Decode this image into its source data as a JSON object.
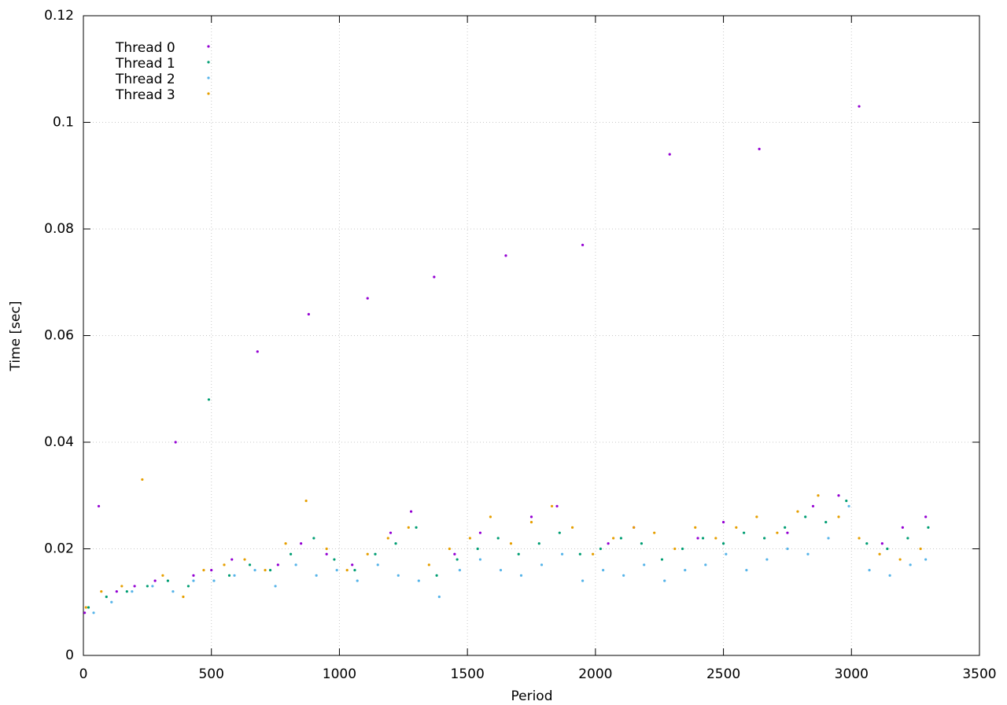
{
  "chart_data": {
    "type": "scatter",
    "x_label": "Period",
    "y_label": "Time [sec]",
    "xlim": [
      0,
      3500
    ],
    "xticks": [
      0,
      500,
      1000,
      1500,
      2000,
      2500,
      3000,
      3500
    ],
    "ylim": [
      0,
      0.12
    ],
    "yticks": [
      0,
      0.02,
      0.04,
      0.06,
      0.08,
      0.1,
      0.12
    ],
    "grid": true,
    "legend": "top-left",
    "series": [
      {
        "name": "Thread 0",
        "color": "#9400d3",
        "x": [
          5,
          60,
          130,
          200,
          280,
          360,
          430,
          500,
          580,
          680,
          760,
          850,
          880,
          950,
          1050,
          1110,
          1200,
          1280,
          1370,
          1450,
          1550,
          1650,
          1750,
          1850,
          1950,
          2050,
          2150,
          2290,
          2400,
          2500,
          2640,
          2750,
          2850,
          2950,
          3030,
          3120,
          3200,
          3290
        ],
        "values": [
          0.008,
          0.028,
          0.012,
          0.013,
          0.014,
          0.04,
          0.015,
          0.016,
          0.018,
          0.057,
          0.017,
          0.021,
          0.064,
          0.019,
          0.017,
          0.067,
          0.023,
          0.027,
          0.071,
          0.019,
          0.023,
          0.075,
          0.026,
          0.028,
          0.077,
          0.021,
          0.024,
          0.094,
          0.022,
          0.025,
          0.095,
          0.023,
          0.028,
          0.03,
          0.103,
          0.021,
          0.024,
          0.026
        ]
      },
      {
        "name": "Thread 1",
        "color": "#009e73",
        "x": [
          20,
          90,
          170,
          250,
          330,
          410,
          490,
          570,
          650,
          730,
          810,
          900,
          980,
          1060,
          1140,
          1220,
          1300,
          1380,
          1460,
          1540,
          1620,
          1700,
          1780,
          1860,
          1940,
          2020,
          2100,
          2180,
          2260,
          2340,
          2420,
          2500,
          2580,
          2660,
          2740,
          2820,
          2900,
          2980,
          3060,
          3140,
          3220,
          3300
        ],
        "values": [
          0.009,
          0.011,
          0.012,
          0.013,
          0.014,
          0.013,
          0.048,
          0.015,
          0.017,
          0.016,
          0.019,
          0.022,
          0.018,
          0.016,
          0.019,
          0.021,
          0.024,
          0.015,
          0.018,
          0.02,
          0.022,
          0.019,
          0.021,
          0.023,
          0.019,
          0.02,
          0.022,
          0.021,
          0.018,
          0.02,
          0.022,
          0.021,
          0.023,
          0.022,
          0.024,
          0.026,
          0.025,
          0.029,
          0.021,
          0.02,
          0.022,
          0.024
        ]
      },
      {
        "name": "Thread 2",
        "color": "#56b4e9",
        "x": [
          40,
          110,
          190,
          270,
          350,
          430,
          510,
          590,
          670,
          750,
          830,
          910,
          990,
          1070,
          1150,
          1230,
          1310,
          1390,
          1470,
          1550,
          1630,
          1710,
          1790,
          1870,
          1950,
          2030,
          2110,
          2190,
          2270,
          2350,
          2430,
          2510,
          2590,
          2670,
          2750,
          2830,
          2910,
          2990,
          3070,
          3150,
          3230,
          3290
        ],
        "values": [
          0.008,
          0.01,
          0.012,
          0.013,
          0.012,
          0.014,
          0.014,
          0.015,
          0.016,
          0.013,
          0.017,
          0.015,
          0.016,
          0.014,
          0.017,
          0.015,
          0.014,
          0.011,
          0.016,
          0.018,
          0.016,
          0.015,
          0.017,
          0.019,
          0.014,
          0.016,
          0.015,
          0.017,
          0.014,
          0.016,
          0.017,
          0.019,
          0.016,
          0.018,
          0.02,
          0.019,
          0.022,
          0.028,
          0.016,
          0.015,
          0.017,
          0.018
        ]
      },
      {
        "name": "Thread 3",
        "color": "#e69f00",
        "x": [
          10,
          70,
          150,
          230,
          310,
          390,
          470,
          550,
          630,
          710,
          790,
          870,
          950,
          1030,
          1110,
          1190,
          1270,
          1350,
          1430,
          1510,
          1590,
          1670,
          1750,
          1830,
          1910,
          1990,
          2070,
          2150,
          2230,
          2310,
          2390,
          2470,
          2550,
          2630,
          2710,
          2790,
          2870,
          2950,
          3030,
          3110,
          3190,
          3270
        ],
        "values": [
          0.009,
          0.012,
          0.013,
          0.033,
          0.015,
          0.011,
          0.016,
          0.017,
          0.018,
          0.016,
          0.021,
          0.029,
          0.02,
          0.016,
          0.019,
          0.022,
          0.024,
          0.017,
          0.02,
          0.022,
          0.026,
          0.021,
          0.025,
          0.028,
          0.024,
          0.019,
          0.022,
          0.024,
          0.023,
          0.02,
          0.024,
          0.022,
          0.024,
          0.026,
          0.023,
          0.027,
          0.03,
          0.026,
          0.022,
          0.019,
          0.018,
          0.02
        ]
      }
    ]
  }
}
